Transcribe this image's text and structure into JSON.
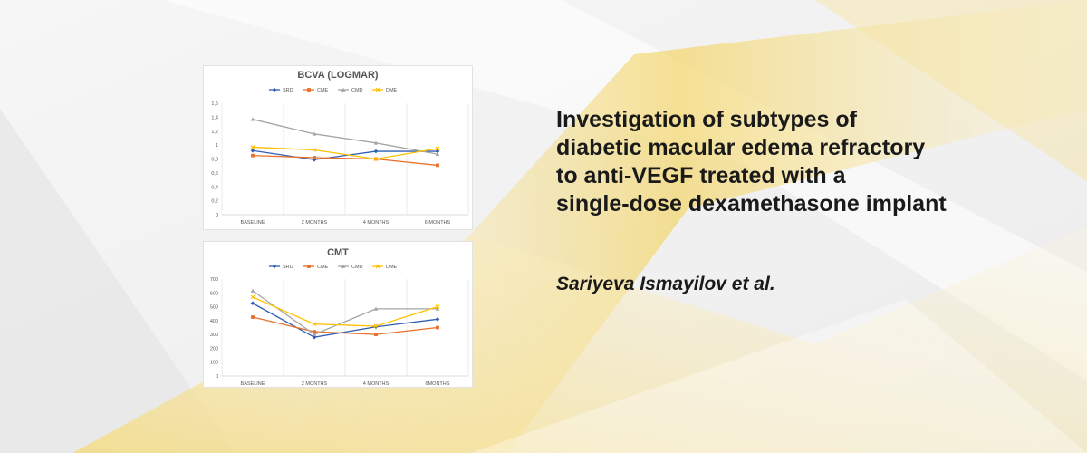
{
  "headline": [
    "Investigation of subtypes of",
    "diabetic macular edema refractory",
    "to anti-VEGF treated with a",
    "single-dose dexamethasone implant"
  ],
  "authors": "Sariyeva Ismayilov et al.",
  "colors": {
    "background_accent": "#f2d36b"
  },
  "chart_data": [
    {
      "type": "line",
      "title": "BCVA (LOGMAR)",
      "categories": [
        "BASELINE",
        "2 MONTHS",
        "4 MONTHS",
        "6 MONTHS"
      ],
      "ylim": [
        0,
        1.6
      ],
      "yticks": [
        "0",
        "0,2",
        "0,4",
        "0,6",
        "0,8",
        "1",
        "1,2",
        "1,4",
        "1,6"
      ],
      "legend_position": "top",
      "grid": "vertical",
      "series": [
        {
          "name": "SRD",
          "color": "#2f5fb3",
          "marker": "diamond",
          "values": [
            0.92,
            0.79,
            0.91,
            0.91
          ]
        },
        {
          "name": "CME",
          "color": "#e8702a",
          "marker": "square",
          "values": [
            0.85,
            0.82,
            0.8,
            0.71
          ]
        },
        {
          "name": "CMD",
          "color": "#a5a5a5",
          "marker": "triangle",
          "values": [
            1.37,
            1.16,
            1.03,
            0.87
          ]
        },
        {
          "name": "DME",
          "color": "#ffc000",
          "marker": "x",
          "values": [
            0.97,
            0.93,
            0.8,
            0.95
          ]
        }
      ]
    },
    {
      "type": "line",
      "title": "CMT",
      "categories": [
        "BASELINE",
        "2 MONTHS",
        "4 MONTHS",
        "6MONTHS"
      ],
      "ylim": [
        0,
        700
      ],
      "yticks": [
        "0",
        "100",
        "200",
        "300",
        "400",
        "500",
        "600",
        "700"
      ],
      "legend_position": "top",
      "grid": "vertical",
      "series": [
        {
          "name": "SRD",
          "color": "#2f5fb3",
          "marker": "diamond",
          "values": [
            525,
            280,
            355,
            410
          ]
        },
        {
          "name": "CME",
          "color": "#e8702a",
          "marker": "square",
          "values": [
            425,
            320,
            300,
            350
          ]
        },
        {
          "name": "CMD",
          "color": "#a5a5a5",
          "marker": "triangle",
          "values": [
            615,
            300,
            485,
            485
          ]
        },
        {
          "name": "DME",
          "color": "#ffc000",
          "marker": "x",
          "values": [
            570,
            375,
            360,
            500
          ]
        }
      ]
    }
  ]
}
